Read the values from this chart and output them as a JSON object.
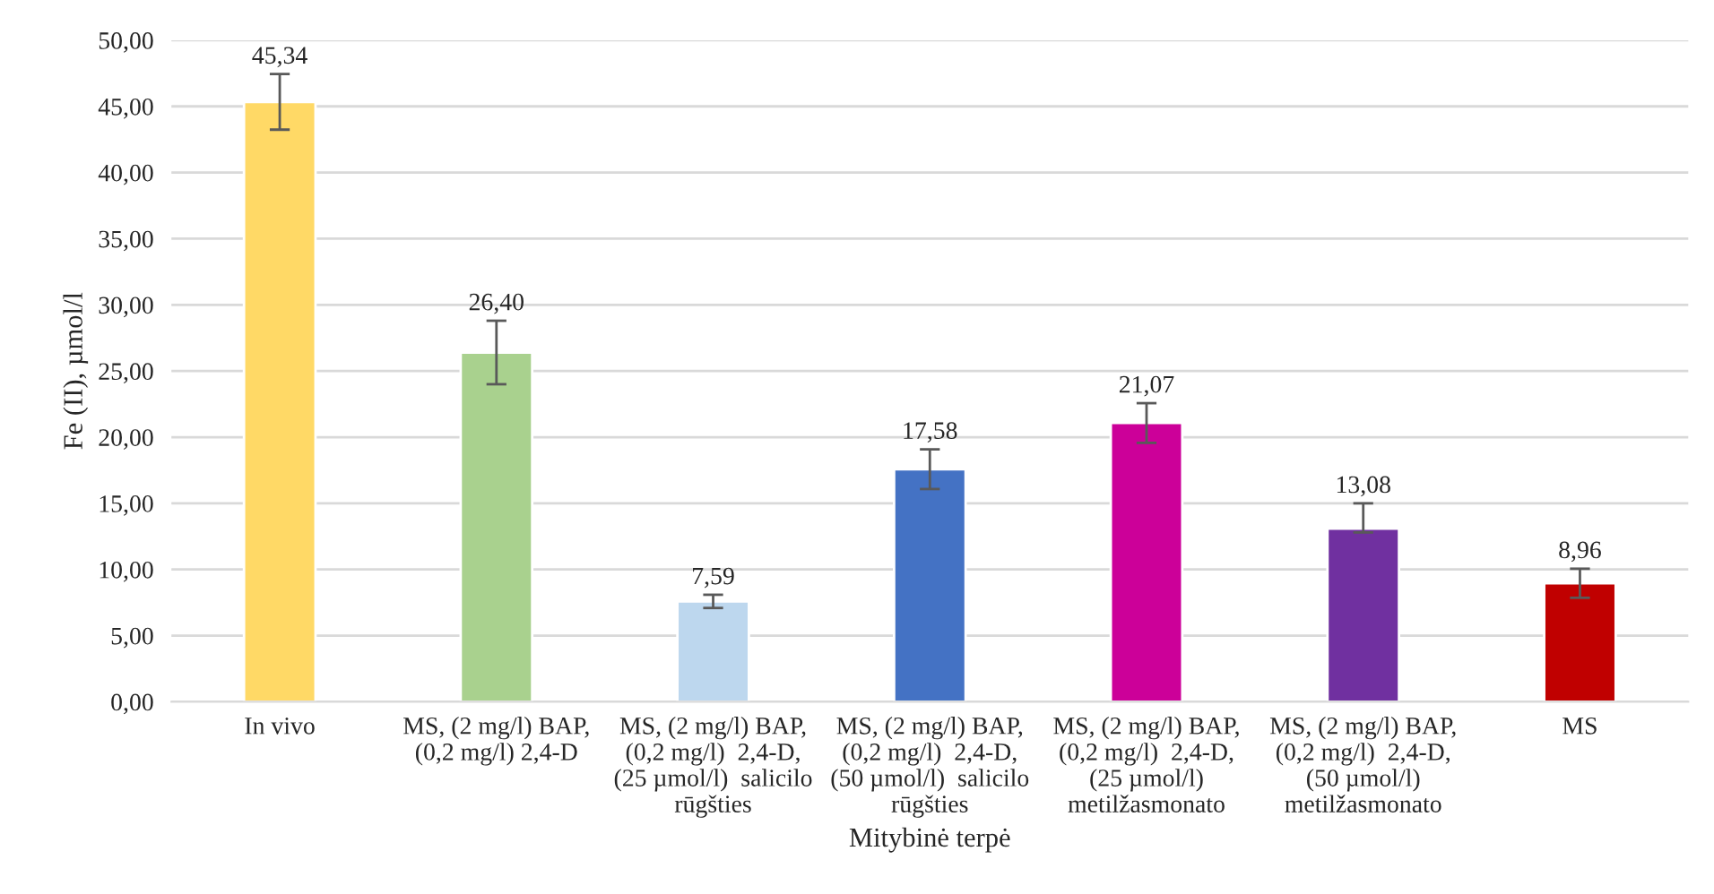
{
  "chart_data": {
    "type": "bar",
    "xlabel": "Mitybinė terpė",
    "ylabel": "Fe (II), µmol/l",
    "categories": [
      "In vivo",
      "MS, (2 mg/l) BAP,\n(0,2 mg/l) 2,4-D",
      "MS, (2 mg/l) BAP,\n(0,2 mg/l)  2,4-D,\n(25 µmol/l)  salicilo\nrūgšties",
      "MS, (2 mg/l) BAP,\n(0,2 mg/l)  2,4-D,\n(50 µmol/l)  salicilo\nrūgšties",
      "MS, (2 mg/l) BAP,\n(0,2 mg/l)  2,4-D,\n(25 µmol/l)\nmetilžasmonato",
      "MS, (2 mg/l) BAP,\n(0,2 mg/l)  2,4-D,\n(50 µmol/l)\nmetilžasmonato",
      "MS"
    ],
    "values": [
      45.34,
      26.4,
      7.59,
      17.58,
      21.07,
      13.08,
      8.96
    ],
    "value_labels": [
      "45,34",
      "26,40",
      "7,59",
      "17,58",
      "21,07",
      "13,08",
      "8,96"
    ],
    "colors": [
      "#ffd966",
      "#a9d18e",
      "#bdd7ee",
      "#4472c4",
      "#cc0099",
      "#7030a0",
      "#c00000"
    ],
    "errors": [
      2.1,
      2.4,
      0.5,
      1.5,
      1.5,
      [
        12.8,
        15.0
      ],
      1.1
    ],
    "ylim": [
      0,
      50
    ],
    "yticks": [
      {
        "value": 0,
        "label": "0,00"
      },
      {
        "value": 5,
        "label": "5,00"
      },
      {
        "value": 10,
        "label": "10,00"
      },
      {
        "value": 15,
        "label": "15,00"
      },
      {
        "value": 20,
        "label": "20,00"
      },
      {
        "value": 25,
        "label": "25,00"
      },
      {
        "value": 30,
        "label": "30,00"
      },
      {
        "value": 35,
        "label": "35,00"
      },
      {
        "value": 40,
        "label": "40,00"
      },
      {
        "value": 45,
        "label": "45,00"
      },
      {
        "value": 50,
        "label": "50,00"
      }
    ],
    "grid": "y",
    "legend": false
  }
}
